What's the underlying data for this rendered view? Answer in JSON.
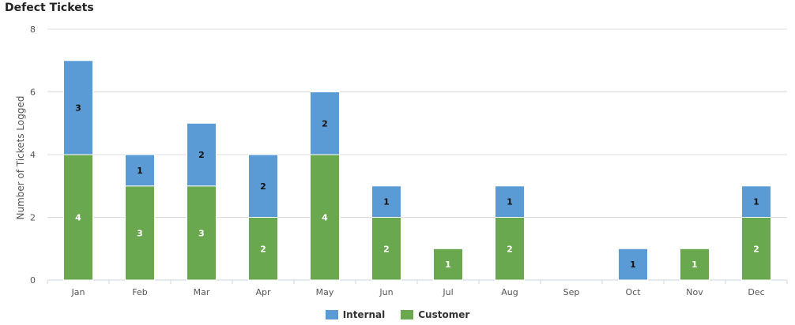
{
  "chart_data": {
    "type": "bar",
    "stacked": true,
    "title": "Defect Tickets",
    "xlabel": "",
    "ylabel": "Number of Tickets Logged",
    "ylim": [
      0,
      8
    ],
    "yticks": [
      0,
      2,
      4,
      6,
      8
    ],
    "categories": [
      "Jan",
      "Feb",
      "Mar",
      "Apr",
      "May",
      "Jun",
      "Jul",
      "Aug",
      "Sep",
      "Oct",
      "Nov",
      "Dec"
    ],
    "series": [
      {
        "name": "Customer",
        "color": "#6aa84f",
        "label_color": "#ffffff",
        "values": [
          4,
          3,
          3,
          2,
          4,
          2,
          1,
          2,
          0,
          0,
          1,
          2
        ]
      },
      {
        "name": "Internal",
        "color": "#5b9bd5",
        "label_color": "#111111",
        "values": [
          3,
          1,
          2,
          2,
          2,
          1,
          0,
          1,
          0,
          1,
          0,
          1
        ]
      }
    ],
    "grid": true,
    "legend_position": "bottom-center",
    "legend_order": [
      "Internal",
      "Customer"
    ]
  }
}
